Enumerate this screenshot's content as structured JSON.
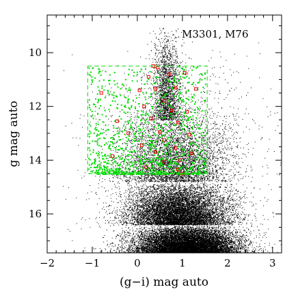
{
  "chart_data": {
    "type": "scatter",
    "title": "",
    "annotation": "M3301, M76",
    "xlabel": "(g−i) mag auto",
    "ylabel": "g mag auto",
    "xlim": [
      -2,
      3.2
    ],
    "ylim": [
      17.45,
      8.6
    ],
    "y_inverted": true,
    "xticks": [
      -2,
      -1,
      0,
      1,
      2,
      3
    ],
    "yticks": [
      10,
      12,
      14,
      16
    ],
    "grid": false,
    "selection_box": {
      "x_range": [
        -1.1,
        1.55
      ],
      "y_range": [
        10.5,
        14.5
      ],
      "style": "dashed",
      "color": "#00dd00"
    },
    "series": [
      {
        "color": "#000000",
        "marker": "dot",
        "approx_count": 28000,
        "density_components": [
          {
            "weight": 0.4,
            "x_mean": 1.1,
            "x_sd": 0.55,
            "y_from": 16.4,
            "y_to": 17.45
          },
          {
            "weight": 0.3,
            "x_mean": 0.9,
            "x_sd": 0.55,
            "y_from": 14.8,
            "y_to": 16.4
          },
          {
            "weight": 0.15,
            "x_mean": 0.8,
            "x_sd": 0.6,
            "y_from": 12.0,
            "y_to": 14.8
          },
          {
            "weight": 0.07,
            "x_mean": 0.65,
            "x_sd": 0.16,
            "y_from": 9.0,
            "y_to": 12.5
          },
          {
            "weight": 0.08,
            "x_mean": 0.9,
            "x_sd": 0.9,
            "y_from": 9.5,
            "y_to": 17.45
          }
        ]
      },
      {
        "color": "#00dd00",
        "marker": "small-square",
        "approx_count": 1100,
        "region": {
          "x_range": [
            -1.1,
            1.5
          ],
          "y_range": [
            10.5,
            14.5
          ]
        },
        "density_note": "denser toward fainter magnitudes (y 12.5 to 14.5)"
      },
      {
        "color": "#ee0000",
        "marker": "open-square",
        "points": [
          [
            0.35,
            10.5
          ],
          [
            0.45,
            10.55
          ],
          [
            0.25,
            10.9
          ],
          [
            0.7,
            10.8
          ],
          [
            1.05,
            10.75
          ],
          [
            -0.8,
            11.5
          ],
          [
            0.05,
            11.4
          ],
          [
            0.4,
            11.35
          ],
          [
            0.85,
            11.3
          ],
          [
            1.3,
            11.35
          ],
          [
            0.6,
            11.8
          ],
          [
            0.15,
            12.0
          ],
          [
            0.75,
            12.15
          ],
          [
            1.1,
            12.2
          ],
          [
            -0.45,
            12.55
          ],
          [
            0.3,
            12.45
          ],
          [
            0.9,
            12.6
          ],
          [
            -0.2,
            13.0
          ],
          [
            0.5,
            12.95
          ],
          [
            1.15,
            13.05
          ],
          [
            0.6,
            13.25
          ],
          [
            0.1,
            13.45
          ],
          [
            0.85,
            13.55
          ],
          [
            -0.55,
            13.85
          ],
          [
            0.4,
            13.7
          ],
          [
            1.2,
            13.75
          ],
          [
            0.95,
            14.0
          ],
          [
            0.6,
            14.05
          ],
          [
            0.2,
            14.25
          ],
          [
            0.9,
            14.35
          ],
          [
            1.0,
            14.5
          ]
        ]
      }
    ]
  }
}
